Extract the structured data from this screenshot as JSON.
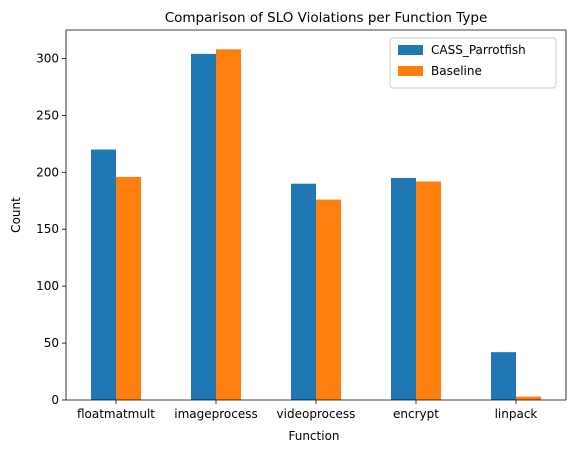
{
  "chart_data": {
    "type": "bar",
    "title": "Comparison of SLO Violations per Function Type",
    "xlabel": "Function",
    "ylabel": "Count",
    "categories": [
      "floatmatmult",
      "imageprocess",
      "videoprocess",
      "encrypt",
      "linpack"
    ],
    "series": [
      {
        "name": "CASS_Parrotfish",
        "values": [
          220,
          304,
          190,
          195,
          42
        ],
        "color": "#1f77b4"
      },
      {
        "name": "Baseline",
        "values": [
          196,
          308,
          176,
          192,
          3
        ],
        "color": "#ff7f0e"
      }
    ],
    "ylim": [
      0,
      325
    ],
    "yticks": [
      0,
      50,
      100,
      150,
      200,
      250,
      300
    ],
    "grid": false,
    "legend": "top-right"
  }
}
